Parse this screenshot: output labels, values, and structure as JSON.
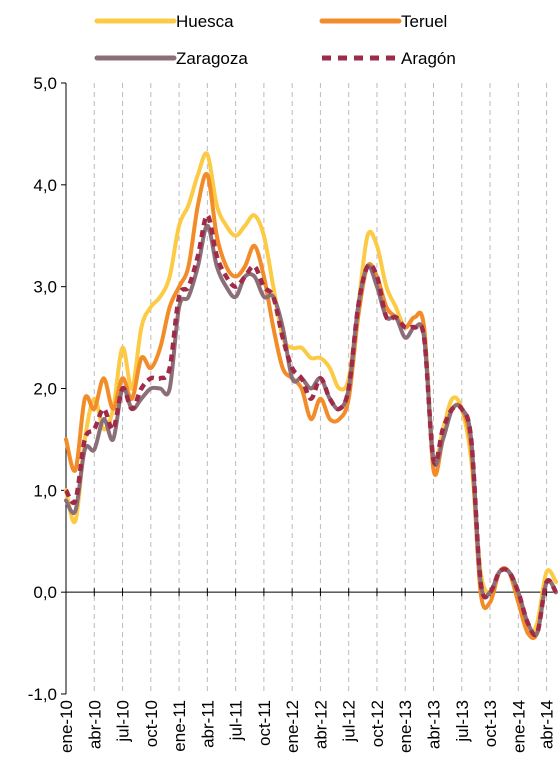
{
  "chart_data": {
    "type": "line",
    "title": "",
    "xlabel": "",
    "ylabel": "",
    "ylim": [
      -1,
      5
    ],
    "y_ticks": [
      -1,
      0,
      1,
      2,
      3,
      4,
      5
    ],
    "y_tick_labels": [
      "-1,0",
      "0,0",
      "1,0",
      "2,0",
      "3,0",
      "4,0",
      "5,0"
    ],
    "x_tick_labels": [
      "ene-10",
      "abr-10",
      "jul-10",
      "oct-10",
      "ene-11",
      "abr-11",
      "jul-11",
      "oct-11",
      "ene-12",
      "abr-12",
      "jul-12",
      "oct-12",
      "ene-13",
      "abr-13",
      "jul-13",
      "oct-13",
      "ene-14",
      "abr-14"
    ],
    "x": [
      "ene-10",
      "feb-10",
      "mar-10",
      "abr-10",
      "may-10",
      "jun-10",
      "jul-10",
      "ago-10",
      "sep-10",
      "oct-10",
      "nov-10",
      "dic-10",
      "ene-11",
      "feb-11",
      "mar-11",
      "abr-11",
      "may-11",
      "jun-11",
      "jul-11",
      "ago-11",
      "sep-11",
      "oct-11",
      "nov-11",
      "dic-11",
      "ene-12",
      "feb-12",
      "mar-12",
      "abr-12",
      "may-12",
      "jun-12",
      "jul-12",
      "ago-12",
      "sep-12",
      "oct-12",
      "nov-12",
      "dic-12",
      "ene-13",
      "feb-13",
      "mar-13",
      "abr-13",
      "may-13",
      "jun-13",
      "jul-13",
      "ago-13",
      "sep-13",
      "oct-13",
      "nov-13",
      "dic-13",
      "ene-14",
      "feb-14",
      "mar-14",
      "abr-14",
      "may-14"
    ],
    "grid": "vertical dashed",
    "legend_position": "top",
    "series": [
      {
        "name": "Huesca",
        "color": "#FCCB45",
        "style": "solid",
        "values": [
          1.0,
          0.7,
          1.5,
          1.9,
          1.6,
          1.8,
          2.4,
          2.0,
          2.6,
          2.8,
          2.9,
          3.1,
          3.6,
          3.8,
          4.1,
          4.3,
          3.8,
          3.6,
          3.5,
          3.6,
          3.7,
          3.5,
          3.0,
          2.5,
          2.4,
          2.4,
          2.3,
          2.3,
          2.2,
          2.0,
          2.1,
          2.8,
          3.5,
          3.4,
          3.0,
          2.8,
          2.6,
          2.7,
          2.6,
          1.3,
          1.6,
          1.9,
          1.8,
          1.3,
          0.2,
          0.0,
          0.2,
          0.2,
          0.0,
          -0.4,
          -0.3,
          0.2,
          0.1
        ]
      },
      {
        "name": "Teruel",
        "color": "#F28C28",
        "style": "solid",
        "values": [
          1.5,
          1.2,
          1.9,
          1.8,
          2.1,
          1.8,
          2.1,
          1.9,
          2.3,
          2.2,
          2.4,
          2.8,
          3.0,
          3.2,
          3.8,
          4.1,
          3.5,
          3.2,
          3.1,
          3.2,
          3.4,
          3.1,
          2.6,
          2.2,
          2.1,
          2.0,
          1.7,
          1.9,
          1.7,
          1.7,
          1.9,
          2.7,
          3.2,
          3.1,
          2.8,
          2.7,
          2.6,
          2.7,
          2.6,
          1.2,
          1.5,
          1.8,
          1.8,
          1.4,
          0.0,
          -0.1,
          0.2,
          0.2,
          -0.1,
          -0.4,
          -0.4,
          0.1,
          0.0
        ]
      },
      {
        "name": "Zaragoza",
        "color": "#8B6F78",
        "style": "solid",
        "values": [
          0.9,
          0.8,
          1.4,
          1.4,
          1.7,
          1.5,
          2.0,
          1.8,
          1.9,
          2.0,
          2.0,
          2.0,
          2.8,
          2.9,
          3.2,
          3.6,
          3.2,
          3.0,
          2.9,
          3.1,
          3.1,
          2.9,
          2.9,
          2.6,
          2.1,
          2.1,
          2.0,
          2.1,
          1.9,
          1.8,
          2.0,
          2.8,
          3.2,
          3.0,
          2.7,
          2.7,
          2.5,
          2.6,
          2.5,
          1.3,
          1.5,
          1.8,
          1.8,
          1.5,
          0.1,
          0.0,
          0.2,
          0.2,
          0.0,
          -0.3,
          -0.4,
          0.1,
          0.0
        ]
      },
      {
        "name": "Aragón",
        "color": "#A02B48",
        "style": "dashed",
        "values": [
          1.0,
          0.9,
          1.5,
          1.6,
          1.8,
          1.6,
          2.0,
          1.8,
          2.0,
          2.1,
          2.1,
          2.2,
          2.9,
          3.0,
          3.3,
          3.7,
          3.3,
          3.1,
          3.0,
          3.1,
          3.2,
          3.0,
          2.9,
          2.5,
          2.2,
          2.1,
          1.9,
          2.1,
          1.9,
          1.8,
          2.0,
          2.8,
          3.2,
          3.1,
          2.7,
          2.7,
          2.6,
          2.6,
          2.5,
          1.3,
          1.6,
          1.8,
          1.8,
          1.5,
          0.1,
          0.0,
          0.2,
          0.2,
          0.0,
          -0.3,
          -0.4,
          0.1,
          0.0
        ]
      }
    ]
  }
}
